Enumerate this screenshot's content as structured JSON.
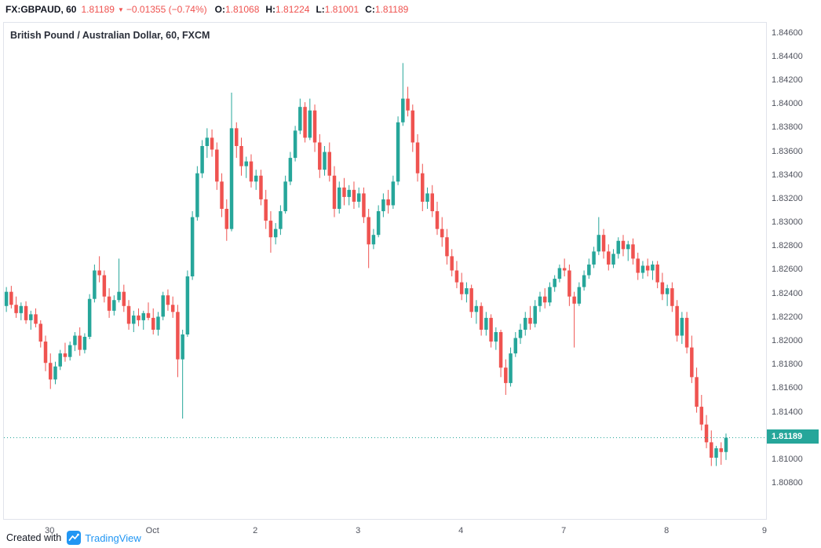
{
  "topbar": {
    "symbol": "FX:GBPAUD, 60",
    "last_price": "1.81189",
    "direction_icon": "▼",
    "change": "−0.01355 (−0.74%)",
    "ohlc": [
      {
        "label": "O:",
        "value": "1.81068"
      },
      {
        "label": "H:",
        "value": "1.81224"
      },
      {
        "label": "L:",
        "value": "1.81001"
      },
      {
        "label": "C:",
        "value": "1.81189"
      }
    ]
  },
  "chart": {
    "legend": "British Pound / Australian Dollar, 60, FXCM",
    "last_price_label": "1.81189"
  },
  "chart_data": {
    "type": "candlestick",
    "title": "British Pound / Australian Dollar, 60, FXCM",
    "symbol": "GBPAUD",
    "interval": "60",
    "exchange": "FXCM",
    "grid": false,
    "colors": {
      "up": "#26a69a",
      "down": "#ef5350"
    },
    "last_price": 1.81189,
    "y_axis": {
      "min": 1.8049,
      "max": 1.8469,
      "tick_step": 0.002,
      "labels": [
        "1.84600",
        "1.84400",
        "1.84200",
        "1.84000",
        "1.83800",
        "1.83600",
        "1.83400",
        "1.83200",
        "1.83000",
        "1.82800",
        "1.82600",
        "1.82400",
        "1.82200",
        "1.82000",
        "1.81800",
        "1.81600",
        "1.81400",
        "1.81200",
        "1.81000",
        "1.80800"
      ]
    },
    "x_axis": {
      "total_slots": 156,
      "labels": [
        {
          "text": "30",
          "slot": 9
        },
        {
          "text": "Oct",
          "slot": 30
        },
        {
          "text": "2",
          "slot": 51
        },
        {
          "text": "3",
          "slot": 72
        },
        {
          "text": "4",
          "slot": 93
        },
        {
          "text": "7",
          "slot": 114
        },
        {
          "text": "8",
          "slot": 135
        },
        {
          "text": "9",
          "slot": 155
        }
      ]
    },
    "candles": [
      [
        1.823,
        1.8246,
        1.8225,
        1.8242
      ],
      [
        1.8242,
        1.8247,
        1.8228,
        1.8231
      ],
      [
        1.8231,
        1.8238,
        1.822,
        1.8224
      ],
      [
        1.8224,
        1.8233,
        1.8218,
        1.823
      ],
      [
        1.823,
        1.8234,
        1.8215,
        1.8218
      ],
      [
        1.8218,
        1.8226,
        1.821,
        1.8223
      ],
      [
        1.8223,
        1.8228,
        1.8212,
        1.8215
      ],
      [
        1.8215,
        1.8218,
        1.8195,
        1.82
      ],
      [
        1.82,
        1.8205,
        1.8175,
        1.8182
      ],
      [
        1.8182,
        1.819,
        1.816,
        1.8168
      ],
      [
        1.8168,
        1.8183,
        1.8164,
        1.8179
      ],
      [
        1.8179,
        1.8193,
        1.8176,
        1.819
      ],
      [
        1.819,
        1.8199,
        1.8183,
        1.8187
      ],
      [
        1.8187,
        1.82,
        1.8184,
        1.8197
      ],
      [
        1.8197,
        1.8208,
        1.8192,
        1.8205
      ],
      [
        1.8205,
        1.8212,
        1.8188,
        1.8193
      ],
      [
        1.8193,
        1.8207,
        1.819,
        1.8204
      ],
      [
        1.8204,
        1.824,
        1.8202,
        1.8236
      ],
      [
        1.8236,
        1.8265,
        1.8233,
        1.826
      ],
      [
        1.826,
        1.8272,
        1.825,
        1.8256
      ],
      [
        1.8256,
        1.826,
        1.8233,
        1.8238
      ],
      [
        1.8238,
        1.8245,
        1.822,
        1.8226
      ],
      [
        1.8226,
        1.8239,
        1.8222,
        1.8235
      ],
      [
        1.8235,
        1.827,
        1.8233,
        1.8242
      ],
      [
        1.8242,
        1.8248,
        1.8225,
        1.823
      ],
      [
        1.823,
        1.8235,
        1.821,
        1.8215
      ],
      [
        1.8215,
        1.8226,
        1.8208,
        1.8222
      ],
      [
        1.8222,
        1.8228,
        1.8213,
        1.8218
      ],
      [
        1.8218,
        1.8226,
        1.821,
        1.8224
      ],
      [
        1.8224,
        1.8233,
        1.8218,
        1.822
      ],
      [
        1.822,
        1.8228,
        1.8206,
        1.821
      ],
      [
        1.821,
        1.8225,
        1.8205,
        1.8221
      ],
      [
        1.8221,
        1.8242,
        1.8218,
        1.8239
      ],
      [
        1.8239,
        1.8244,
        1.8226,
        1.8231
      ],
      [
        1.8231,
        1.8238,
        1.822,
        1.8225
      ],
      [
        1.8225,
        1.8231,
        1.817,
        1.8185
      ],
      [
        1.8185,
        1.821,
        1.8135,
        1.8206
      ],
      [
        1.8206,
        1.826,
        1.8204,
        1.8255
      ],
      [
        1.8255,
        1.831,
        1.8252,
        1.8305
      ],
      [
        1.8305,
        1.8348,
        1.8302,
        1.8342
      ],
      [
        1.8342,
        1.837,
        1.8338,
        1.8365
      ],
      [
        1.8365,
        1.838,
        1.8355,
        1.8372
      ],
      [
        1.8372,
        1.8379,
        1.8356,
        1.8362
      ],
      [
        1.8362,
        1.8368,
        1.8328,
        1.8335
      ],
      [
        1.8335,
        1.8342,
        1.8305,
        1.8312
      ],
      [
        1.8312,
        1.832,
        1.8285,
        1.8295
      ],
      [
        1.8295,
        1.841,
        1.8293,
        1.838
      ],
      [
        1.838,
        1.8385,
        1.8355,
        1.8365
      ],
      [
        1.8365,
        1.8372,
        1.834,
        1.8348
      ],
      [
        1.8348,
        1.8356,
        1.8338,
        1.8352
      ],
      [
        1.8352,
        1.8358,
        1.833,
        1.8335
      ],
      [
        1.8335,
        1.8345,
        1.8328,
        1.834
      ],
      [
        1.834,
        1.8345,
        1.8315,
        1.832
      ],
      [
        1.832,
        1.8328,
        1.8295,
        1.8302
      ],
      [
        1.8302,
        1.831,
        1.8275,
        1.8288
      ],
      [
        1.8288,
        1.83,
        1.8282,
        1.8295
      ],
      [
        1.8295,
        1.8315,
        1.829,
        1.831
      ],
      [
        1.831,
        1.834,
        1.8308,
        1.8335
      ],
      [
        1.8335,
        1.836,
        1.8332,
        1.8355
      ],
      [
        1.8355,
        1.8382,
        1.8352,
        1.8378
      ],
      [
        1.8378,
        1.8405,
        1.8375,
        1.8398
      ],
      [
        1.8398,
        1.8402,
        1.8368,
        1.8372
      ],
      [
        1.8372,
        1.8405,
        1.837,
        1.8395
      ],
      [
        1.8395,
        1.84,
        1.836,
        1.8368
      ],
      [
        1.8368,
        1.8375,
        1.8338,
        1.8345
      ],
      [
        1.8345,
        1.8365,
        1.834,
        1.836
      ],
      [
        1.836,
        1.8368,
        1.8335,
        1.834
      ],
      [
        1.834,
        1.8348,
        1.8305,
        1.8312
      ],
      [
        1.8312,
        1.8335,
        1.8308,
        1.833
      ],
      [
        1.833,
        1.8338,
        1.8315,
        1.8322
      ],
      [
        1.8322,
        1.8332,
        1.8315,
        1.8328
      ],
      [
        1.8328,
        1.8335,
        1.8312,
        1.8318
      ],
      [
        1.8318,
        1.833,
        1.8313,
        1.8325
      ],
      [
        1.8325,
        1.833,
        1.83,
        1.8305
      ],
      [
        1.8305,
        1.8312,
        1.8262,
        1.8282
      ],
      [
        1.8282,
        1.8295,
        1.8278,
        1.829
      ],
      [
        1.829,
        1.8315,
        1.8288,
        1.831
      ],
      [
        1.831,
        1.8325,
        1.8305,
        1.832
      ],
      [
        1.832,
        1.8328,
        1.8308,
        1.8315
      ],
      [
        1.8315,
        1.834,
        1.8312,
        1.8335
      ],
      [
        1.8335,
        1.839,
        1.8332,
        1.8385
      ],
      [
        1.8385,
        1.8435,
        1.8382,
        1.8405
      ],
      [
        1.8405,
        1.8415,
        1.839,
        1.8395
      ],
      [
        1.8395,
        1.84,
        1.836,
        1.8368
      ],
      [
        1.8368,
        1.8375,
        1.8335,
        1.8342
      ],
      [
        1.8342,
        1.835,
        1.831,
        1.8318
      ],
      [
        1.8318,
        1.833,
        1.8312,
        1.8325
      ],
      [
        1.8325,
        1.8332,
        1.8305,
        1.831
      ],
      [
        1.831,
        1.8318,
        1.829,
        1.8295
      ],
      [
        1.8295,
        1.8305,
        1.828,
        1.8288
      ],
      [
        1.8288,
        1.8295,
        1.8265,
        1.8272
      ],
      [
        1.8272,
        1.8278,
        1.8255,
        1.826
      ],
      [
        1.826,
        1.8268,
        1.8245,
        1.825
      ],
      [
        1.825,
        1.8258,
        1.8235,
        1.824
      ],
      [
        1.824,
        1.825,
        1.8233,
        1.8245
      ],
      [
        1.8245,
        1.8248,
        1.822,
        1.8225
      ],
      [
        1.8225,
        1.8235,
        1.8215,
        1.823
      ],
      [
        1.823,
        1.8233,
        1.8205,
        1.821
      ],
      [
        1.821,
        1.8225,
        1.8205,
        1.822
      ],
      [
        1.822,
        1.8223,
        1.8195,
        1.82
      ],
      [
        1.82,
        1.8212,
        1.8193,
        1.8208
      ],
      [
        1.8208,
        1.821,
        1.817,
        1.8178
      ],
      [
        1.8178,
        1.8185,
        1.8155,
        1.8165
      ],
      [
        1.8165,
        1.8195,
        1.8162,
        1.819
      ],
      [
        1.819,
        1.8208,
        1.8187,
        1.8203
      ],
      [
        1.8203,
        1.8215,
        1.8198,
        1.821
      ],
      [
        1.821,
        1.8225,
        1.8205,
        1.822
      ],
      [
        1.822,
        1.823,
        1.821,
        1.8215
      ],
      [
        1.8215,
        1.8235,
        1.8212,
        1.823
      ],
      [
        1.823,
        1.8242,
        1.8225,
        1.8238
      ],
      [
        1.8238,
        1.8245,
        1.8228,
        1.8233
      ],
      [
        1.8233,
        1.825,
        1.823,
        1.8246
      ],
      [
        1.8246,
        1.8256,
        1.8242,
        1.8253
      ],
      [
        1.8253,
        1.8265,
        1.825,
        1.8262
      ],
      [
        1.8262,
        1.827,
        1.8255,
        1.826
      ],
      [
        1.826,
        1.8265,
        1.823,
        1.8238
      ],
      [
        1.8238,
        1.8242,
        1.8195,
        1.8232
      ],
      [
        1.8232,
        1.825,
        1.823,
        1.8246
      ],
      [
        1.8246,
        1.826,
        1.8243,
        1.8256
      ],
      [
        1.8256,
        1.827,
        1.8253,
        1.8265
      ],
      [
        1.8265,
        1.828,
        1.8262,
        1.8276
      ],
      [
        1.8276,
        1.8305,
        1.8273,
        1.829
      ],
      [
        1.829,
        1.8295,
        1.827,
        1.8276
      ],
      [
        1.8276,
        1.8282,
        1.826,
        1.8265
      ],
      [
        1.8265,
        1.8278,
        1.8262,
        1.8274
      ],
      [
        1.8274,
        1.8288,
        1.827,
        1.8285
      ],
      [
        1.8285,
        1.829,
        1.8272,
        1.8278
      ],
      [
        1.8278,
        1.8285,
        1.8268,
        1.8282
      ],
      [
        1.8282,
        1.8287,
        1.8265,
        1.827
      ],
      [
        1.827,
        1.8275,
        1.8252,
        1.8258
      ],
      [
        1.8258,
        1.8268,
        1.8253,
        1.8264
      ],
      [
        1.8264,
        1.827,
        1.8255,
        1.826
      ],
      [
        1.826,
        1.8268,
        1.8252,
        1.8265
      ],
      [
        1.8265,
        1.8268,
        1.8245,
        1.825
      ],
      [
        1.825,
        1.8258,
        1.8235,
        1.824
      ],
      [
        1.824,
        1.8248,
        1.823,
        1.8245
      ],
      [
        1.8245,
        1.825,
        1.8225,
        1.823
      ],
      [
        1.823,
        1.8235,
        1.82,
        1.8205
      ],
      [
        1.8205,
        1.8225,
        1.8198,
        1.822
      ],
      [
        1.822,
        1.8225,
        1.819,
        1.8195
      ],
      [
        1.8195,
        1.8205,
        1.8165,
        1.817
      ],
      [
        1.817,
        1.8178,
        1.814,
        1.8145
      ],
      [
        1.8145,
        1.8155,
        1.8125,
        1.813
      ],
      [
        1.813,
        1.8138,
        1.811,
        1.8115
      ],
      [
        1.8115,
        1.8125,
        1.8095,
        1.8102
      ],
      [
        1.8102,
        1.8112,
        1.8095,
        1.811
      ],
      [
        1.811,
        1.8115,
        1.8096,
        1.81068
      ],
      [
        1.81068,
        1.81224,
        1.81001,
        1.81189
      ]
    ]
  },
  "footer": {
    "created_with": "Created with",
    "brand": "TradingView"
  }
}
